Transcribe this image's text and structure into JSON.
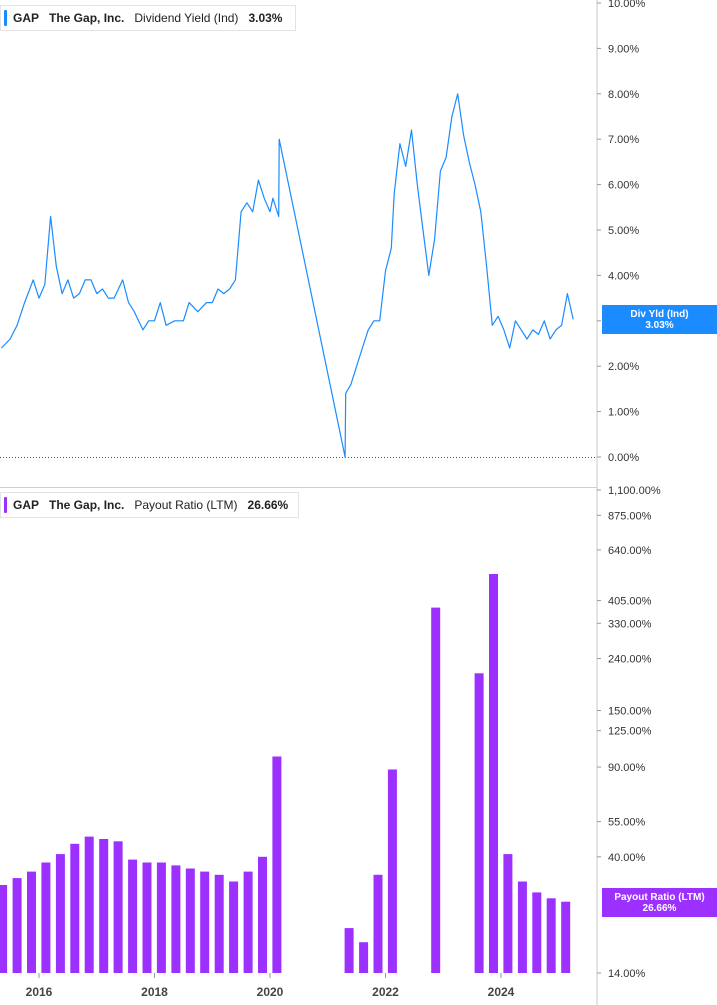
{
  "panels": {
    "yield": {
      "legend": {
        "ticker": "GAP",
        "company": "The Gap, Inc.",
        "metric": "Dividend Yield (Ind)",
        "value": "3.03%"
      },
      "tag": {
        "line1": "Div Yld (Ind)",
        "line2": "3.03%"
      },
      "color": "#1a8cff"
    },
    "payout": {
      "legend": {
        "ticker": "GAP",
        "company": "The Gap, Inc.",
        "metric": "Payout Ratio (LTM)",
        "value": "26.66%"
      },
      "tag": {
        "line1": "Payout Ratio (LTM)",
        "line2": "26.66%"
      },
      "color": "#9b30ff"
    }
  },
  "x_axis": {
    "ticks": [
      "2016",
      "2018",
      "2020",
      "2022",
      "2024"
    ]
  },
  "chart_data": [
    {
      "type": "line",
      "series": [
        {
          "name": "Dividend Yield (Ind)",
          "x": [
            2015.35,
            2015.5,
            2015.62,
            2015.75,
            2015.9,
            2016.0,
            2016.1,
            2016.2,
            2016.3,
            2016.4,
            2016.5,
            2016.6,
            2016.7,
            2016.8,
            2016.9,
            2017.0,
            2017.1,
            2017.2,
            2017.3,
            2017.45,
            2017.55,
            2017.65,
            2017.8,
            2017.9,
            2018.0,
            2018.1,
            2018.2,
            2018.35,
            2018.5,
            2018.6,
            2018.75,
            2018.9,
            2019.0,
            2019.1,
            2019.2,
            2019.3,
            2019.4,
            2019.5,
            2019.6,
            2019.7,
            2019.8,
            2019.9,
            2020.0,
            2020.05,
            2020.15,
            2020.16,
            2021.3,
            2021.31,
            2021.4,
            2021.5,
            2021.6,
            2021.7,
            2021.8,
            2021.9,
            2022.0,
            2022.1,
            2022.15,
            2022.25,
            2022.35,
            2022.45,
            2022.55,
            2022.65,
            2022.75,
            2022.85,
            2022.95,
            2023.05,
            2023.15,
            2023.25,
            2023.35,
            2023.45,
            2023.55,
            2023.65,
            2023.75,
            2023.85,
            2023.95,
            2024.05,
            2024.15,
            2024.25,
            2024.35,
            2024.45,
            2024.55,
            2024.65,
            2024.75,
            2024.85,
            2024.95,
            2025.05,
            2025.15,
            2025.25
          ],
          "y": [
            2.4,
            2.6,
            2.9,
            3.4,
            3.9,
            3.5,
            3.8,
            5.3,
            4.2,
            3.6,
            3.9,
            3.5,
            3.6,
            3.9,
            3.9,
            3.6,
            3.7,
            3.5,
            3.5,
            3.9,
            3.4,
            3.2,
            2.8,
            3.0,
            3.0,
            3.4,
            2.9,
            3.0,
            3.0,
            3.4,
            3.2,
            3.4,
            3.4,
            3.7,
            3.6,
            3.7,
            3.9,
            5.4,
            5.6,
            5.4,
            6.1,
            5.7,
            5.4,
            5.7,
            5.3,
            7.0,
            0,
            1.4,
            1.6,
            2.0,
            2.4,
            2.8,
            3.0,
            3.0,
            4.1,
            4.6,
            5.8,
            6.9,
            6.4,
            7.2,
            6.0,
            5.0,
            4.0,
            4.8,
            6.3,
            6.6,
            7.5,
            8.0,
            7.1,
            6.5,
            6.0,
            5.4,
            4.2,
            2.9,
            3.1,
            2.8,
            2.4,
            3.0,
            2.8,
            2.6,
            2.8,
            2.7,
            3.0,
            2.6,
            2.8,
            2.9,
            3.6,
            3.03
          ]
        }
      ],
      "ylim": [
        0,
        10
      ],
      "y_ticks": [
        "0.00%",
        "1.00%",
        "2.00%",
        "3.00%",
        "4.00%",
        "5.00%",
        "6.00%",
        "7.00%",
        "8.00%",
        "9.00%",
        "10.00%"
      ],
      "y_tick_values": [
        0,
        1,
        2,
        3,
        4,
        5,
        6,
        7,
        8,
        9,
        10
      ],
      "grid": false
    },
    {
      "type": "bar",
      "scale": "log",
      "series": [
        {
          "name": "Payout Ratio (LTM)",
          "x": [
            2015.37,
            2015.62,
            2015.87,
            2016.12,
            2016.37,
            2016.62,
            2016.87,
            2017.12,
            2017.37,
            2017.62,
            2017.87,
            2018.12,
            2018.37,
            2018.62,
            2018.87,
            2019.12,
            2019.37,
            2019.62,
            2019.87,
            2020.12,
            2021.37,
            2021.62,
            2021.87,
            2022.12,
            2022.87,
            2023.62,
            2023.87,
            2024.12,
            2024.37,
            2024.62,
            2024.87,
            2025.12
          ],
          "values": [
            31,
            33,
            35,
            38,
            41,
            45,
            48,
            47,
            46,
            39,
            38,
            38,
            37,
            36,
            35,
            34,
            32,
            35,
            40,
            99,
            21,
            18.5,
            34,
            88,
            380,
            210,
            515,
            41,
            32,
            29,
            27.5,
            26.66
          ]
        }
      ],
      "ylim": [
        14,
        1100
      ],
      "y_ticks": [
        "14.00%",
        "40.00%",
        "55.00%",
        "90.00%",
        "125.00%",
        "150.00%",
        "240.00%",
        "330.00%",
        "405.00%",
        "640.00%",
        "875.00%",
        "1,100.00%"
      ],
      "y_tick_values": [
        14,
        40,
        55,
        90,
        125,
        150,
        240,
        330,
        405,
        640,
        875,
        1100
      ],
      "grid": false
    }
  ]
}
